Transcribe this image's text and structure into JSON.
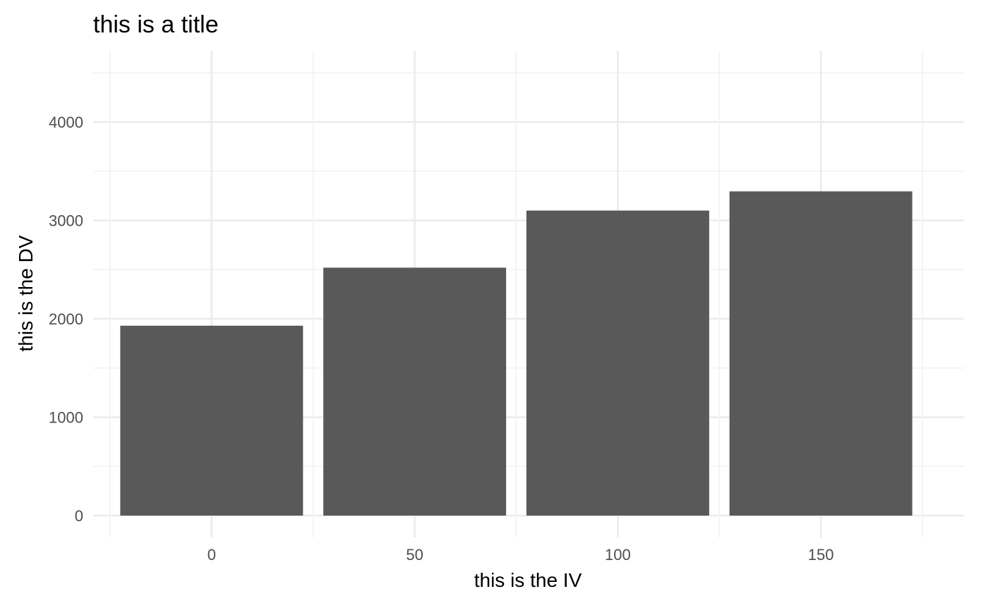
{
  "chart_data": {
    "type": "bar",
    "title": "this is a title",
    "xlabel": "this is the IV",
    "ylabel": "this is the DV",
    "categories": [
      0,
      50,
      100,
      150
    ],
    "values": [
      1930,
      2520,
      3100,
      3295
    ],
    "x_ticks": [
      "0",
      "50",
      "100",
      "150"
    ],
    "y_ticks": [
      "0",
      "1000",
      "2000",
      "3000",
      "4000"
    ],
    "y_tick_values": [
      0,
      1000,
      2000,
      3000,
      4000
    ],
    "ylim": [
      0,
      4500
    ],
    "grid": true,
    "bar_color": "#595959",
    "grid_color": "#ebebeb"
  }
}
